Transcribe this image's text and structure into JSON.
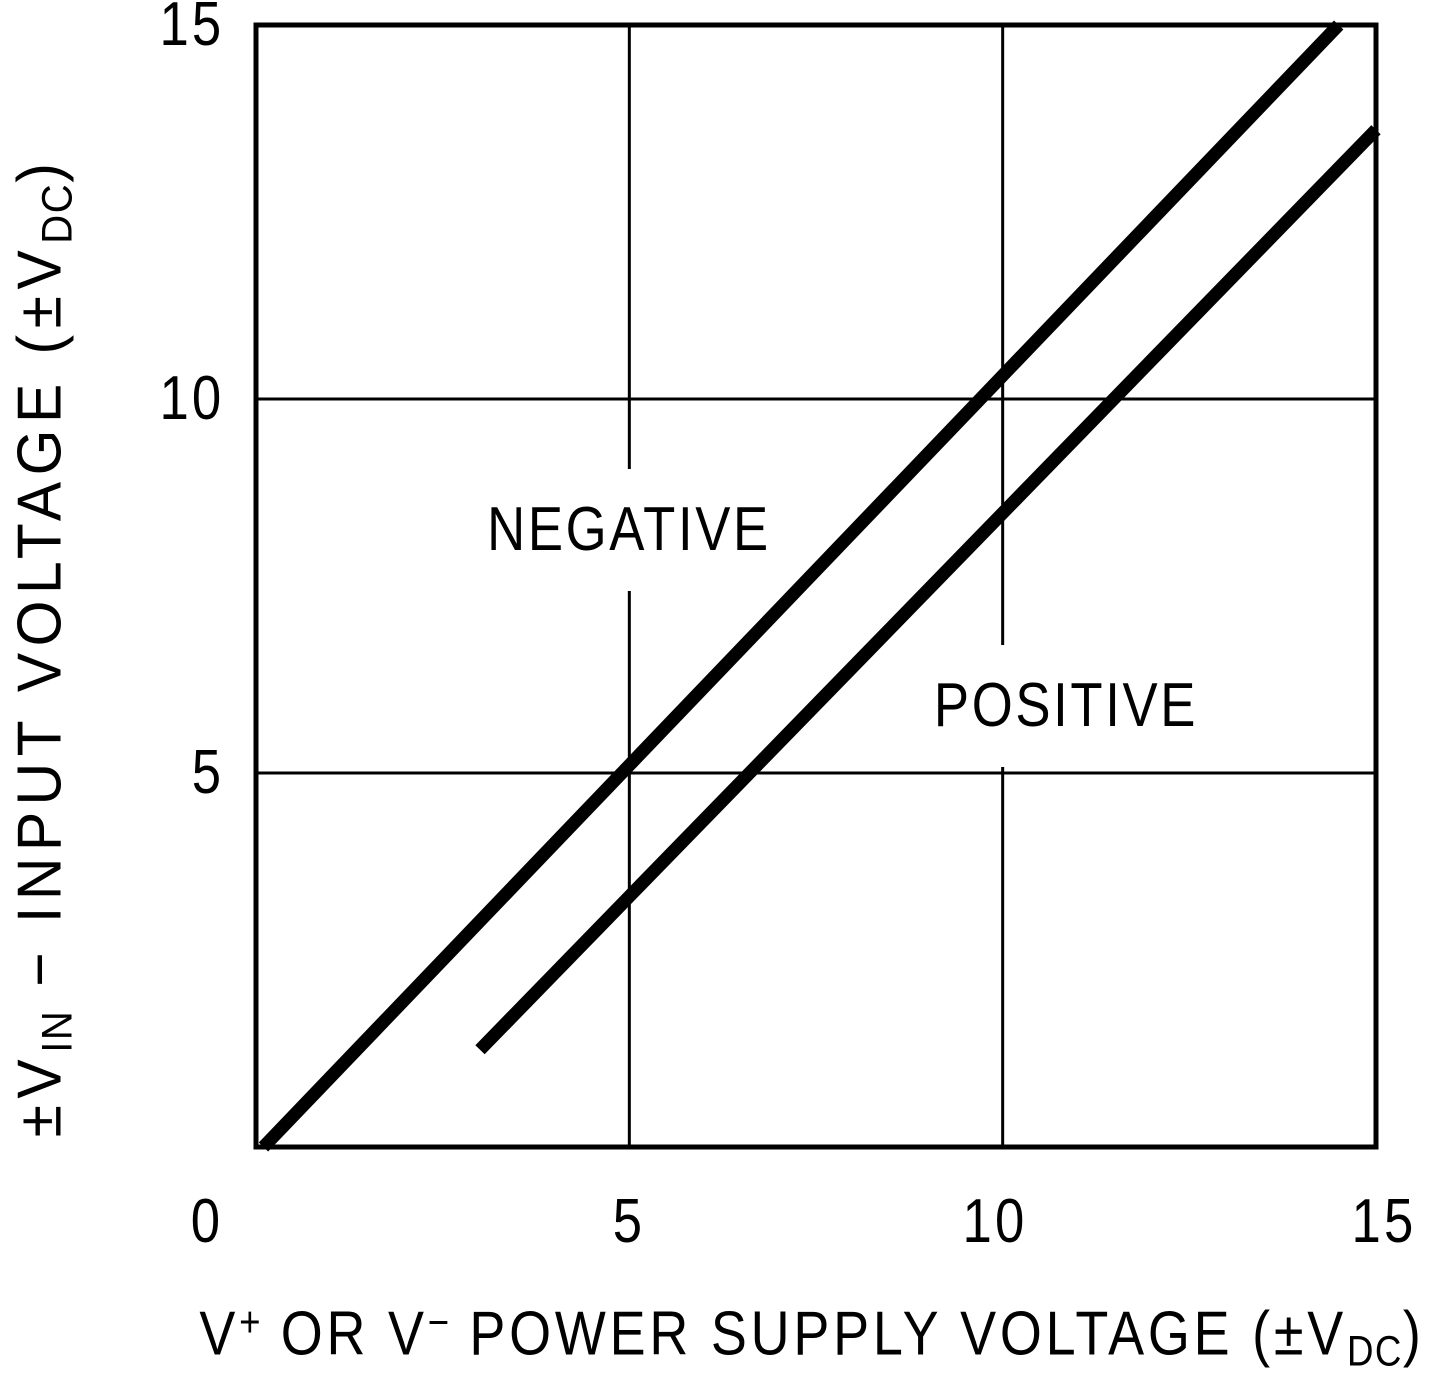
{
  "figure": {
    "background_color": "#ffffff",
    "ink_color": "#000000"
  },
  "chart_data": {
    "type": "line",
    "title": "",
    "xlabel": "V+ OR V− POWER SUPPLY VOLTAGE (±VDC)",
    "ylabel": "±VIN − INPUT VOLTAGE (±VDC)",
    "xlabel_parts": [
      {
        "text": "V",
        "style": "normal"
      },
      {
        "text": "+",
        "style": "sup"
      },
      {
        "text": " OR V",
        "style": "normal"
      },
      {
        "text": "−",
        "style": "sup"
      },
      {
        "text": " POWER SUPPLY VOLTAGE (±V",
        "style": "normal"
      },
      {
        "text": "DC",
        "style": "sub"
      },
      {
        "text": ")",
        "style": "normal"
      }
    ],
    "ylabel_parts": [
      {
        "text": "±V",
        "style": "normal"
      },
      {
        "text": "IN",
        "style": "sub"
      },
      {
        "text": " − INPUT VOLTAGE (±V",
        "style": "normal"
      },
      {
        "text": "DC",
        "style": "sub"
      },
      {
        "text": ")",
        "style": "normal"
      }
    ],
    "xlim": [
      0,
      15
    ],
    "ylim": [
      0,
      15
    ],
    "x_ticks": [
      0,
      5,
      10,
      15
    ],
    "x_tick_labels": [
      "0",
      "5",
      "10",
      "15"
    ],
    "y_ticks": [
      5,
      10,
      15
    ],
    "y_tick_labels": [
      "5",
      "10",
      "15"
    ],
    "grid": "on",
    "grid_x": [
      5,
      10
    ],
    "grid_y": [
      5,
      10
    ],
    "legend": "none",
    "series": [
      {
        "name": "NEGATIVE",
        "points": [
          [
            0.1,
            0
          ],
          [
            14.5,
            15
          ]
        ]
      },
      {
        "name": "POSITIVE",
        "points": [
          [
            3.0,
            1.3
          ],
          [
            15.0,
            13.6
          ]
        ]
      }
    ],
    "annotations": [
      {
        "text": "NEGATIVE",
        "x": 5.0,
        "y": 8.25
      },
      {
        "text": "POSITIVE",
        "x": 10.85,
        "y": 5.9
      }
    ]
  }
}
